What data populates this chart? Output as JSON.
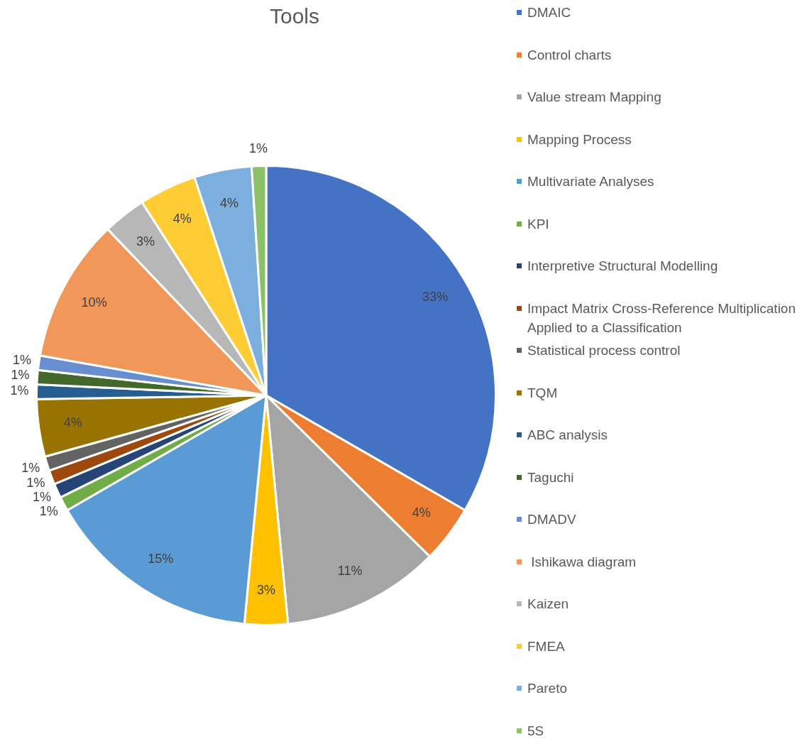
{
  "chart_data": {
    "type": "pie",
    "title": "Tools",
    "legend": "right",
    "categories": [
      "DMAIC",
      "Control charts",
      "Value stream Mapping",
      "Mapping Process",
      "Multivariate Analyses",
      "KPI",
      "Interpretive Structural Modelling",
      "Impact Matrix Cross-Reference Multiplication Applied to a Classification",
      "Statistical process control",
      "TQM",
      "ABC analysis",
      "Taguchi",
      "DMADV",
      " Ishikawa diagram",
      "Kaizen",
      "FMEA",
      "Pareto",
      "5S"
    ],
    "values": [
      33,
      4,
      11,
      3,
      15,
      1,
      1,
      1,
      1,
      4,
      1,
      1,
      1,
      10,
      3,
      4,
      4,
      1
    ],
    "value_labels": [
      "33%",
      "4%",
      "11%",
      "3%",
      "15%",
      "1%",
      "1%",
      "1%",
      "1%",
      "4%",
      "1%",
      "1%",
      "1%",
      "10%",
      "3%",
      "4%",
      "4%",
      "1%"
    ],
    "colors": [
      "#4472c4",
      "#ed7d31",
      "#a5a5a5",
      "#ffc000",
      "#5b9bd5",
      "#70ad47",
      "#264478",
      "#9e480e",
      "#636363",
      "#997300",
      "#255e91",
      "#43682b",
      "#698ed0",
      "#f1975a",
      "#b7b7b7",
      "#ffcd33",
      "#7cafdd",
      "#8cc168"
    ]
  }
}
